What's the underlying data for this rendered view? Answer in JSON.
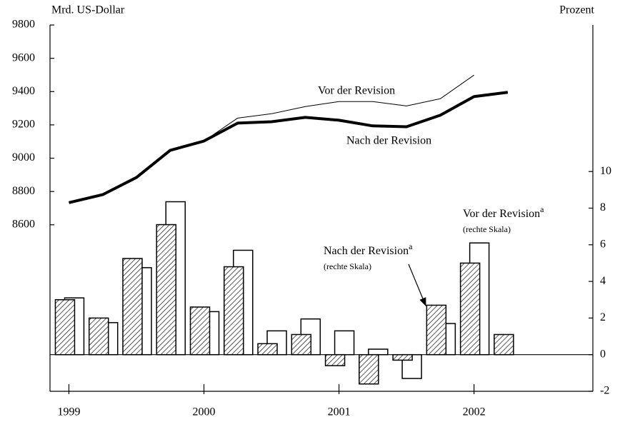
{
  "chart_data": {
    "type": "combo",
    "ylabel": "Mrd. US-Dollar",
    "y2label": "Prozent",
    "xlim": [
      1998.86,
      2002.88
    ],
    "xticks": [
      1999,
      2000,
      2001,
      2002
    ],
    "ylim": [
      7600,
      9800
    ],
    "yticks": [
      8600,
      8800,
      9000,
      9200,
      9400,
      9600,
      9800
    ],
    "y2lim": [
      -2,
      18
    ],
    "y2ticks": [
      -2,
      0,
      2,
      4,
      6,
      8,
      10
    ],
    "series": [
      {
        "name": "Vor der Revision",
        "type": "line",
        "axis": "y",
        "color": "#000",
        "x": [
          1999,
          1999.25,
          1999.5,
          1999.75,
          2000,
          2000.25,
          2000.5,
          2000.75,
          2001,
          2001.25,
          2001.5,
          2001.75,
          2002
        ],
        "values": [
          8733,
          8781,
          8884,
          9047,
          9103,
          9241,
          9267,
          9310,
          9340,
          9340,
          9314,
          9357,
          9499
        ]
      },
      {
        "name": "Nach der Revision",
        "type": "line",
        "axis": "y",
        "color": "#000",
        "x": [
          1999,
          1999.25,
          1999.5,
          1999.75,
          2000,
          2000.25,
          2000.5,
          2000.75,
          2001,
          2001.25,
          2001.5,
          2001.75,
          2002,
          2002.25
        ],
        "values": [
          8733,
          8781,
          8884,
          9047,
          9103,
          9211,
          9219,
          9245,
          9228,
          9194,
          9189,
          9258,
          9370,
          9396
        ]
      },
      {
        "name": "Nach der Revision",
        "marker": "a",
        "note": "(rechte Skala)",
        "type": "bar",
        "axis": "y2",
        "color": "#000",
        "x": [
          1999,
          1999.25,
          1999.5,
          1999.75,
          2000,
          2000.25,
          2000.5,
          2000.75,
          2001,
          2001.25,
          2001.5,
          2001.75,
          2002,
          2002.25
        ],
        "values": [
          3.0,
          2.0,
          5.25,
          7.1,
          2.6,
          4.8,
          0.6,
          1.1,
          -0.6,
          -1.6,
          -0.3,
          2.7,
          5.0,
          1.1
        ]
      },
      {
        "name": "Vor der Revision",
        "marker": "a",
        "note": "(rechte Skala)",
        "type": "bar",
        "axis": "y2",
        "color": "#000",
        "x": [
          1999,
          1999.25,
          1999.5,
          1999.75,
          2000,
          2000.25,
          2000.5,
          2000.75,
          2001,
          2001.25,
          2001.5,
          2001.75,
          2002
        ],
        "values": [
          3.1,
          1.75,
          4.75,
          8.35,
          2.35,
          5.7,
          1.3,
          1.95,
          1.3,
          0.3,
          -1.3,
          1.7,
          6.1
        ]
      }
    ]
  }
}
